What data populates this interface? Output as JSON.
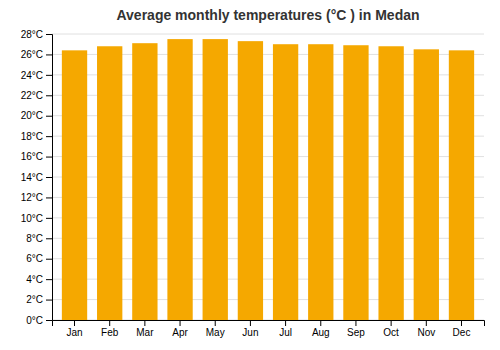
{
  "chart_data": {
    "type": "bar",
    "title": "Average monthly temperatures (°C ) in Medan",
    "categories": [
      "Jan",
      "Feb",
      "Mar",
      "Apr",
      "May",
      "Jun",
      "Jul",
      "Aug",
      "Sep",
      "Oct",
      "Nov",
      "Dec"
    ],
    "values": [
      26.4,
      26.8,
      27.1,
      27.5,
      27.5,
      27.3,
      27.0,
      27.0,
      26.9,
      26.8,
      26.5,
      26.4
    ],
    "color": "#F5A800",
    "ylim": [
      0,
      28
    ],
    "yticks": [
      {
        "value": 0,
        "label": "0°C"
      },
      {
        "value": 2,
        "label": "2°C"
      },
      {
        "value": 4,
        "label": "4°C"
      },
      {
        "value": 6,
        "label": "6°C"
      },
      {
        "value": 8,
        "label": "8°C"
      },
      {
        "value": 10,
        "label": "10°C"
      },
      {
        "value": 12,
        "label": "12°C"
      },
      {
        "value": 14,
        "label": "14°C"
      },
      {
        "value": 16,
        "label": "16°C"
      },
      {
        "value": 18,
        "label": "18°C"
      },
      {
        "value": 20,
        "label": "20°C"
      },
      {
        "value": 22,
        "label": "22°C"
      },
      {
        "value": 24,
        "label": "24°C"
      },
      {
        "value": 26,
        "label": "26°C"
      },
      {
        "value": 28,
        "label": "28°C"
      }
    ],
    "grid": true
  }
}
